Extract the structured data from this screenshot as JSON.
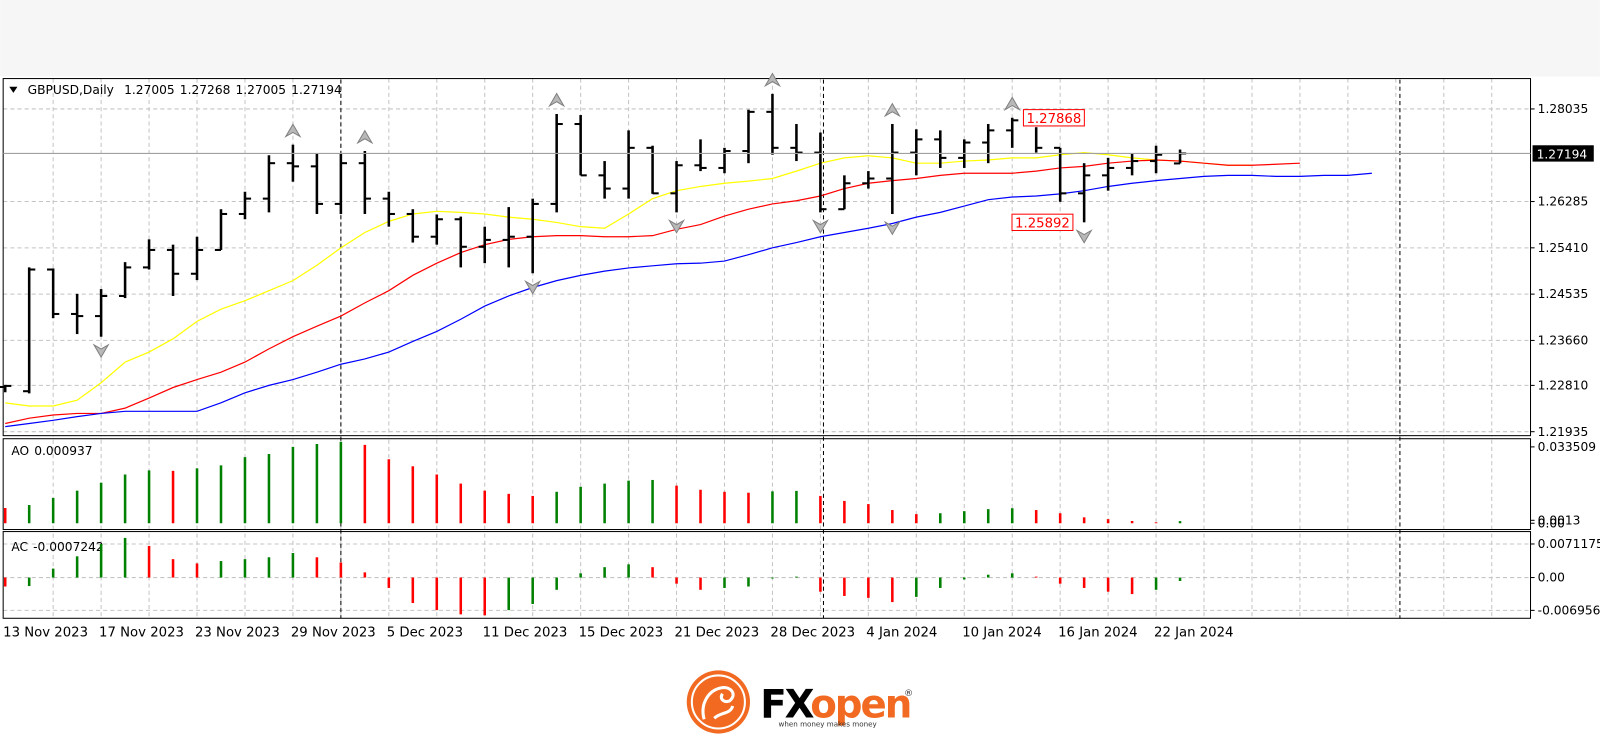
{
  "chart_data": [
    {
      "type": "ohlc",
      "title": "GBPUSD,Daily",
      "categories": [
        "13 Nov 2023",
        null,
        null,
        null,
        "17 Nov 2023",
        null,
        null,
        null,
        "23 Nov 2023",
        null,
        null,
        null,
        "29 Nov 2023",
        null,
        null,
        null,
        "5 Dec 2023",
        null,
        null,
        null,
        "11 Dec 2023",
        null,
        null,
        null,
        "15 Dec 2023",
        null,
        null,
        null,
        "21 Dec 2023",
        null,
        null,
        null,
        "28 Dec 2023",
        null,
        null,
        null,
        "4 Jan 2024",
        null,
        null,
        null,
        "10 Jan 2024",
        null,
        null,
        null,
        "16 Jan 2024",
        null,
        null,
        null,
        "22 Jan 2024",
        null,
        null,
        null,
        null,
        null,
        null,
        null,
        null,
        null
      ],
      "ohlc": {
        "open": [
          1.2278,
          1.227,
          1.25,
          1.2416,
          1.2412,
          1.245,
          1.2504,
          1.2537,
          1.2492,
          1.2537,
          1.2605,
          1.2634,
          1.2701,
          1.2695,
          1.2624,
          1.2701,
          1.2634,
          1.2605,
          1.2562,
          1.2595,
          1.2543,
          1.2556,
          1.2562,
          1.2624,
          1.2775,
          1.2678,
          1.2653,
          1.273,
          1.2644,
          1.2697,
          1.2692,
          1.2724,
          1.2798,
          1.273,
          1.2721,
          1.2614,
          1.2663,
          1.2672,
          1.2721,
          1.2746,
          1.2711,
          1.274,
          1.2763,
          1.2782,
          1.273,
          1.2644,
          1.2678,
          1.2692,
          1.2705,
          1.27005
        ],
        "high": [
          1.2282,
          1.2504,
          1.2502,
          1.2454,
          1.2463,
          1.2514,
          1.2557,
          1.2547,
          1.2562,
          1.2614,
          1.2647,
          1.2716,
          1.2736,
          1.272,
          1.272,
          1.2724,
          1.2647,
          1.2614,
          1.2604,
          1.26,
          1.2581,
          1.2618,
          1.2634,
          1.2794,
          1.2792,
          1.2705,
          1.2763,
          1.2734,
          1.2705,
          1.2746,
          1.273,
          1.2802,
          1.2832,
          1.2775,
          1.2759,
          1.2678,
          1.2686,
          1.2775,
          1.2765,
          1.2763,
          1.2746,
          1.2775,
          1.27868,
          1.2769,
          1.273,
          1.2701,
          1.2711,
          1.272,
          1.2734,
          1.27268
        ],
        "low": [
          1.2268,
          1.2266,
          1.2408,
          1.2378,
          1.2373,
          1.2446,
          1.25,
          1.245,
          1.248,
          1.2537,
          1.2595,
          1.2608,
          1.2666,
          1.2605,
          1.2605,
          1.2605,
          1.2581,
          1.2551,
          1.2547,
          1.2504,
          1.2512,
          1.2504,
          1.2493,
          1.2608,
          1.2678,
          1.2634,
          1.2634,
          1.2643,
          1.2608,
          1.2686,
          1.2682,
          1.2701,
          1.2717,
          1.2705,
          1.2608,
          1.2614,
          1.2653,
          1.2605,
          1.2678,
          1.2692,
          1.2692,
          1.2701,
          1.273,
          1.2721,
          1.2628,
          1.25892,
          1.2649,
          1.2678,
          1.2682,
          1.27005
        ],
        "close": [
          1.228,
          1.25,
          1.2416,
          1.2412,
          1.245,
          1.2504,
          1.2537,
          1.2492,
          1.2537,
          1.2605,
          1.2634,
          1.2701,
          1.2695,
          1.2624,
          1.2701,
          1.2634,
          1.2605,
          1.2562,
          1.2595,
          1.2543,
          1.2556,
          1.2562,
          1.2624,
          1.2775,
          1.2678,
          1.2653,
          1.273,
          1.2644,
          1.2697,
          1.2692,
          1.2724,
          1.2798,
          1.273,
          1.2721,
          1.2614,
          1.2663,
          1.2672,
          1.2721,
          1.2746,
          1.2711,
          1.274,
          1.2763,
          1.2782,
          1.273,
          1.2644,
          1.2678,
          1.2692,
          1.2705,
          1.2717,
          1.27194
        ]
      },
      "bar_color": "#000000",
      "series": [
        {
          "color": "#ffff00",
          "values": [
            1.2248,
            1.2242,
            1.2242,
            1.2253,
            1.2286,
            1.2325,
            1.2344,
            1.2369,
            1.2402,
            1.2425,
            1.2441,
            1.246,
            1.2479,
            1.2508,
            1.2541,
            1.257,
            1.2591,
            1.2605,
            1.261,
            1.2608,
            1.2605,
            1.2599,
            1.2595,
            1.2589,
            1.2581,
            1.2578,
            1.2605,
            1.2634,
            1.2649,
            1.2657,
            1.2663,
            1.2667,
            1.2672,
            1.2686,
            1.2701,
            1.2711,
            1.2715,
            1.2711,
            1.2701,
            1.2701,
            1.2705,
            1.2707,
            1.2711,
            1.2711,
            1.2717,
            1.2721,
            1.2717,
            1.2711,
            1.2707,
            1.2705,
            1.2701,
            1.2697,
            1.2697,
            null,
            null,
            null,
            null,
            null
          ]
        },
        {
          "color": "#ff0000",
          "values": [
            1.2209,
            1.2219,
            1.2225,
            1.2228,
            1.2228,
            1.2238,
            1.2257,
            1.2277,
            1.2292,
            1.2306,
            1.2325,
            1.235,
            1.2373,
            1.2393,
            1.2412,
            1.2437,
            1.246,
            1.2489,
            1.2512,
            1.2532,
            1.2547,
            1.2557,
            1.2562,
            1.2564,
            1.2564,
            1.2562,
            1.2562,
            1.2564,
            1.2576,
            1.2585,
            1.2601,
            1.2614,
            1.2624,
            1.263,
            1.2639,
            1.2653,
            1.2663,
            1.2668,
            1.2672,
            1.2678,
            1.2682,
            1.2682,
            1.2682,
            1.2686,
            1.2692,
            1.2695,
            1.2701,
            1.2705,
            1.2707,
            1.2705,
            1.2701,
            1.2697,
            1.2697,
            1.2699,
            1.2701,
            null,
            null,
            null
          ]
        },
        {
          "color": "#0000ff",
          "values": [
            1.2203,
            1.2209,
            1.2215,
            1.2222,
            1.2228,
            1.2232,
            1.2232,
            1.2232,
            1.2232,
            1.2248,
            1.2267,
            1.2281,
            1.2292,
            1.2306,
            1.2321,
            1.2331,
            1.2344,
            1.2364,
            1.2383,
            1.2406,
            1.2431,
            1.245,
            1.2466,
            1.2479,
            1.2489,
            1.2497,
            1.2503,
            1.2507,
            1.2511,
            1.2512,
            1.2516,
            1.2528,
            1.2541,
            1.2551,
            1.2562,
            1.257,
            1.2578,
            1.2587,
            1.2599,
            1.2608,
            1.262,
            1.2632,
            1.2637,
            1.2639,
            1.2643,
            1.2649,
            1.2657,
            1.2663,
            1.2668,
            1.2672,
            1.2676,
            1.2678,
            1.2678,
            1.2676,
            1.2676,
            1.2678,
            1.2678,
            1.2682
          ]
        }
      ],
      "annotations": [
        {
          "value": 1.27868,
          "bar": 42
        },
        {
          "value": 1.25892,
          "bar": 45
        }
      ],
      "annotation_color": "#ff0000",
      "ylim": [
        1.2186,
        1.2859
      ],
      "yticks": [
        1.21935,
        {
          "value": 1.2281,
          "label": "1.22810"
        },
        {
          "value": 1.2366,
          "label": "1.23660"
        },
        1.24535,
        {
          "value": 1.2541,
          "label": "1.25410"
        },
        1.26285,
        1.28035
      ],
      "grid": true
    },
    {
      "type": "bar",
      "title": "AO",
      "values": [
        0.0067,
        0.008,
        0.0111,
        0.0143,
        0.0178,
        0.0214,
        0.0232,
        0.023,
        0.0241,
        0.0254,
        0.029,
        0.0304,
        0.0335,
        0.0348,
        0.0357,
        0.0344,
        0.0281,
        0.025,
        0.0214,
        0.0174,
        0.0143,
        0.0129,
        0.012,
        0.0138,
        0.016,
        0.0174,
        0.0187,
        0.019,
        0.0165,
        0.0147,
        0.0138,
        0.0134,
        0.014,
        0.0142,
        0.012,
        0.0098,
        0.0084,
        0.0058,
        0.004,
        0.0044,
        0.0053,
        0.0062,
        0.0066,
        0.0058,
        0.0044,
        0.0026,
        0.0018,
        0.001,
        0.0004,
        0.000937
      ],
      "up_color": "#008000",
      "down_color": "#ff0000",
      "ylim": [
        -0.0023,
        0.0362
      ],
      "yticks": [
        {
          "value": 0,
          "label": "0.00"
        },
        0.0013,
        0.033509
      ],
      "grid": false
    },
    {
      "type": "bar",
      "title": "AC",
      "values": [
        -0.0019,
        -0.0018,
        0.0019,
        0.0045,
        0.0071,
        0.0084,
        0.0067,
        0.0039,
        0.003,
        0.0035,
        0.0039,
        0.0043,
        0.0052,
        0.0043,
        0.0032,
        0.0011,
        -0.0022,
        -0.0054,
        -0.0069,
        -0.0078,
        -0.008,
        -0.0069,
        -0.0056,
        -0.0026,
        0.0009,
        0.0022,
        0.0028,
        0.0022,
        -0.0013,
        -0.0026,
        -0.0022,
        -0.0019,
        -0.0002,
        0.0002,
        -0.003,
        -0.0039,
        -0.0043,
        -0.0052,
        -0.0041,
        -0.0022,
        -0.0004,
        0.0006,
        0.0009,
        0.0002,
        -0.0013,
        -0.0022,
        -0.003,
        -0.0035,
        -0.0026,
        -0.0007242
      ],
      "up_color": "#008000",
      "down_color": "#ff0000",
      "ylim": [
        -0.0082,
        0.0091
      ],
      "yticks": [
        -0.006956,
        {
          "value": 0,
          "label": "0.00"
        },
        0.0071175
      ],
      "grid": true
    }
  ],
  "footer": {
    "brand_prefix": "FX",
    "brand_suffix": "open",
    "registered": "®",
    "tagline": "when money makes money"
  }
}
